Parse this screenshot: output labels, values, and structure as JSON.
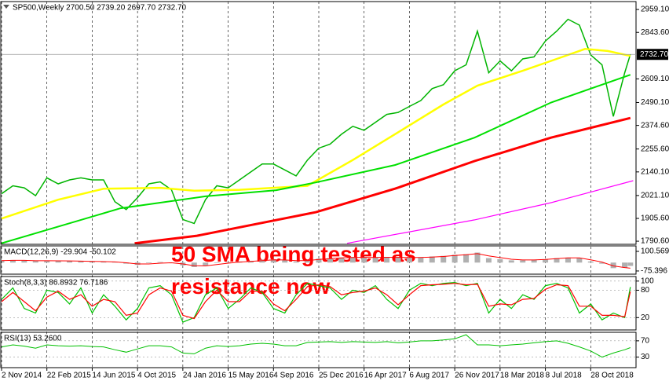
{
  "chart_data": [
    {
      "type": "line",
      "title": "SP500,Weekly  2700.50 2739.20 2697.70 2732.70",
      "annotation": [
        "50 SMA being tested as",
        "resistance now"
      ],
      "xlim": [
        0,
        224
      ],
      "xticks": [
        {
          "value": 0,
          "label": "2 Nov 2014"
        },
        {
          "value": 16,
          "label": "22 Feb 2015"
        },
        {
          "value": 32,
          "label": "14 Jun 2015"
        },
        {
          "value": 48,
          "label": "4 Oct 2015"
        },
        {
          "value": 64,
          "label": "24 Jan 2016"
        },
        {
          "value": 80,
          "label": "15 May 2016"
        },
        {
          "value": 96,
          "label": "4 Sep 2016"
        },
        {
          "value": 112,
          "label": "25 Dec 2016"
        },
        {
          "value": 128,
          "label": "16 Apr 2017"
        },
        {
          "value": 144,
          "label": "6 Aug 2017"
        },
        {
          "value": 160,
          "label": "26 Nov 2017"
        },
        {
          "value": 176,
          "label": "18 Mar 2018"
        },
        {
          "value": 192,
          "label": "8 Jul 2018"
        },
        {
          "value": 208,
          "label": "28 Oct 2018"
        }
      ],
      "ylim": [
        1775,
        2999
      ],
      "yticks": [
        {
          "value": 2959.1,
          "label": "2959.10"
        },
        {
          "value": 2843.6,
          "label": "2843.60"
        },
        {
          "value": 2609.1,
          "label": "2609.10"
        },
        {
          "value": 2490.1,
          "label": "2490.10"
        },
        {
          "value": 2374.6,
          "label": "2374.60"
        },
        {
          "value": 2255.6,
          "label": "2255.60"
        },
        {
          "value": 2140.1,
          "label": "2140.10"
        },
        {
          "value": 2021.1,
          "label": "2021.10"
        },
        {
          "value": 1905.6,
          "label": "1905.60"
        },
        {
          "value": 1790.6,
          "label": "1790.60"
        }
      ],
      "last_price": {
        "value": 2732.7,
        "label": "2732.70"
      },
      "series": [
        {
          "type": "line",
          "color": "#00b400",
          "width": 1.5,
          "x": [
            0,
            4,
            8,
            12,
            16,
            20,
            24,
            28,
            32,
            36,
            40,
            44,
            48,
            52,
            56,
            60,
            64,
            68,
            72,
            76,
            80,
            84,
            88,
            92,
            96,
            100,
            104,
            108,
            112,
            116,
            120,
            124,
            128,
            132,
            136,
            140,
            144,
            148,
            152,
            156,
            160,
            164,
            168,
            172,
            176,
            180,
            184,
            188,
            192,
            196,
            200,
            204,
            208,
            212,
            216,
            220,
            222
          ],
          "values": [
            2030,
            2070,
            2060,
            2020,
            2110,
            2080,
            2100,
            2110,
            2100,
            2100,
            1990,
            1950,
            2010,
            2080,
            2090,
            2050,
            1900,
            1880,
            2000,
            2070,
            2060,
            2100,
            2140,
            2180,
            2180,
            2150,
            2120,
            2200,
            2260,
            2280,
            2330,
            2370,
            2350,
            2390,
            2430,
            2440,
            2470,
            2500,
            2560,
            2580,
            2650,
            2680,
            2850,
            2640,
            2700,
            2650,
            2710,
            2720,
            2800,
            2850,
            2910,
            2880,
            2730,
            2680,
            2420,
            2640,
            2732.7
          ]
        },
        {
          "type": "line",
          "color": "#ffff00",
          "width": 2.5,
          "x": [
            0,
            20,
            36,
            56,
            68,
            84,
            108,
            124,
            140,
            156,
            168,
            184,
            196,
            206,
            214,
            222
          ],
          "values": [
            1905,
            2000,
            2055,
            2060,
            2045,
            2050,
            2070,
            2200,
            2340,
            2480,
            2575,
            2650,
            2710,
            2760,
            2750,
            2725
          ]
        },
        {
          "type": "line",
          "color": "#00e000",
          "width": 2,
          "x": [
            0,
            42,
            72,
            97,
            111,
            139,
            167,
            194,
            222
          ],
          "values": [
            1780,
            1957,
            2017,
            2048,
            2087,
            2175,
            2313,
            2490,
            2630
          ]
        },
        {
          "type": "line",
          "color": "#ff0000",
          "width": 3,
          "x": [
            47,
            69,
            111,
            139,
            167,
            194,
            222
          ],
          "values": [
            1780,
            1818,
            1937,
            2056,
            2195,
            2313,
            2412
          ]
        },
        {
          "type": "line",
          "color": "#ff00ff",
          "width": 1.2,
          "x": [
            122,
            167,
            194,
            223
          ],
          "values": [
            1780,
            1898,
            1985,
            2096
          ]
        }
      ]
    },
    {
      "type": "line",
      "title": "MACD(12,26,9) -29.904 -50.102",
      "xlim": [
        0,
        224
      ],
      "ylim": [
        -104,
        150
      ],
      "yticks": [
        100.569,
        -75.396
      ],
      "x": [
        0,
        4,
        8,
        12,
        16,
        20,
        24,
        28,
        32,
        36,
        40,
        44,
        48,
        52,
        56,
        60,
        64,
        68,
        72,
        76,
        80,
        84,
        88,
        92,
        96,
        100,
        104,
        108,
        112,
        116,
        120,
        124,
        128,
        132,
        136,
        140,
        144,
        148,
        152,
        156,
        160,
        164,
        168,
        172,
        176,
        180,
        184,
        188,
        192,
        196,
        200,
        204,
        208,
        212,
        216,
        220,
        222
      ],
      "series": [
        {
          "type": "bar",
          "color": "#b0b0b0",
          "values": [
            20,
            22,
            18,
            15,
            18,
            15,
            14,
            12,
            10,
            8,
            5,
            -10,
            -20,
            -5,
            5,
            0,
            -25,
            -40,
            -25,
            -5,
            5,
            10,
            15,
            25,
            30,
            20,
            10,
            20,
            35,
            40,
            45,
            50,
            45,
            45,
            50,
            45,
            45,
            45,
            55,
            60,
            70,
            75,
            90,
            40,
            30,
            20,
            20,
            25,
            30,
            40,
            45,
            40,
            10,
            -10,
            -50,
            -45,
            -29.904
          ]
        },
        {
          "type": "line",
          "color": "#ff0000",
          "width": 1,
          "values": [
            18,
            20,
            20,
            17,
            17,
            16,
            15,
            13,
            11,
            9,
            6,
            -2,
            -12,
            -12,
            -5,
            -2,
            -12,
            -28,
            -30,
            -18,
            -5,
            5,
            10,
            18,
            25,
            24,
            18,
            18,
            28,
            36,
            42,
            46,
            47,
            46,
            48,
            47,
            46,
            46,
            50,
            55,
            63,
            70,
            80,
            60,
            45,
            30,
            24,
            24,
            28,
            35,
            42,
            43,
            25,
            5,
            -30,
            -45,
            -50.102
          ]
        }
      ]
    },
    {
      "type": "line",
      "title": "Stoch(8,3,3) 86.8932 76.7186",
      "xlim": [
        0,
        224
      ],
      "ylim": [
        -7,
        110
      ],
      "yticks": [
        100,
        80,
        20
      ],
      "x": [
        0,
        4,
        8,
        12,
        16,
        20,
        24,
        28,
        32,
        36,
        40,
        44,
        48,
        52,
        56,
        60,
        64,
        68,
        72,
        76,
        80,
        84,
        88,
        92,
        96,
        100,
        104,
        108,
        112,
        116,
        120,
        124,
        128,
        132,
        136,
        140,
        144,
        148,
        152,
        156,
        160,
        164,
        168,
        172,
        176,
        180,
        184,
        188,
        192,
        196,
        200,
        204,
        208,
        212,
        216,
        220,
        222
      ],
      "series": [
        {
          "type": "line",
          "color": "#00c000",
          "width": 1.2,
          "values": [
            60,
            85,
            40,
            30,
            80,
            75,
            50,
            85,
            30,
            70,
            45,
            15,
            40,
            85,
            90,
            70,
            10,
            20,
            70,
            85,
            40,
            60,
            85,
            75,
            40,
            30,
            70,
            95,
            90,
            85,
            60,
            80,
            75,
            90,
            60,
            40,
            80,
            95,
            90,
            95,
            97,
            90,
            95,
            30,
            60,
            40,
            70,
            60,
            90,
            95,
            85,
            30,
            50,
            15,
            30,
            20,
            86.8932
          ]
        },
        {
          "type": "line",
          "color": "#ff0000",
          "width": 1.2,
          "values": [
            55,
            75,
            55,
            35,
            65,
            78,
            60,
            70,
            45,
            60,
            55,
            25,
            30,
            70,
            85,
            78,
            25,
            18,
            55,
            80,
            55,
            55,
            78,
            78,
            50,
            35,
            60,
            88,
            92,
            88,
            70,
            75,
            78,
            85,
            70,
            48,
            70,
            90,
            92,
            93,
            95,
            92,
            93,
            45,
            50,
            48,
            60,
            62,
            82,
            92,
            90,
            45,
            45,
            25,
            25,
            22,
            76.7186
          ]
        }
      ]
    },
    {
      "type": "line",
      "title": "RSI(13) 53.2600",
      "xlim": [
        0,
        224
      ],
      "ylim": [
        4,
        91
      ],
      "yticks": [
        70,
        30
      ],
      "x": [
        0,
        4,
        8,
        12,
        16,
        20,
        24,
        28,
        32,
        36,
        40,
        44,
        48,
        52,
        56,
        60,
        64,
        68,
        72,
        76,
        80,
        84,
        88,
        92,
        96,
        100,
        104,
        108,
        112,
        116,
        120,
        124,
        128,
        132,
        136,
        140,
        144,
        148,
        152,
        156,
        160,
        164,
        168,
        172,
        176,
        180,
        184,
        188,
        192,
        196,
        200,
        204,
        208,
        212,
        216,
        220,
        222
      ],
      "series": [
        {
          "type": "line",
          "color": "#00c000",
          "width": 1,
          "values": [
            55,
            60,
            57,
            52,
            60,
            58,
            57,
            58,
            56,
            55,
            48,
            42,
            50,
            58,
            58,
            55,
            40,
            38,
            52,
            58,
            56,
            58,
            62,
            64,
            62,
            58,
            58,
            66,
            67,
            68,
            66,
            68,
            67,
            66,
            68,
            65,
            67,
            70,
            70,
            72,
            75,
            85,
            60,
            60,
            58,
            60,
            62,
            65,
            68,
            70,
            64,
            55,
            45,
            30,
            40,
            48,
            53.26
          ]
        }
      ]
    }
  ]
}
